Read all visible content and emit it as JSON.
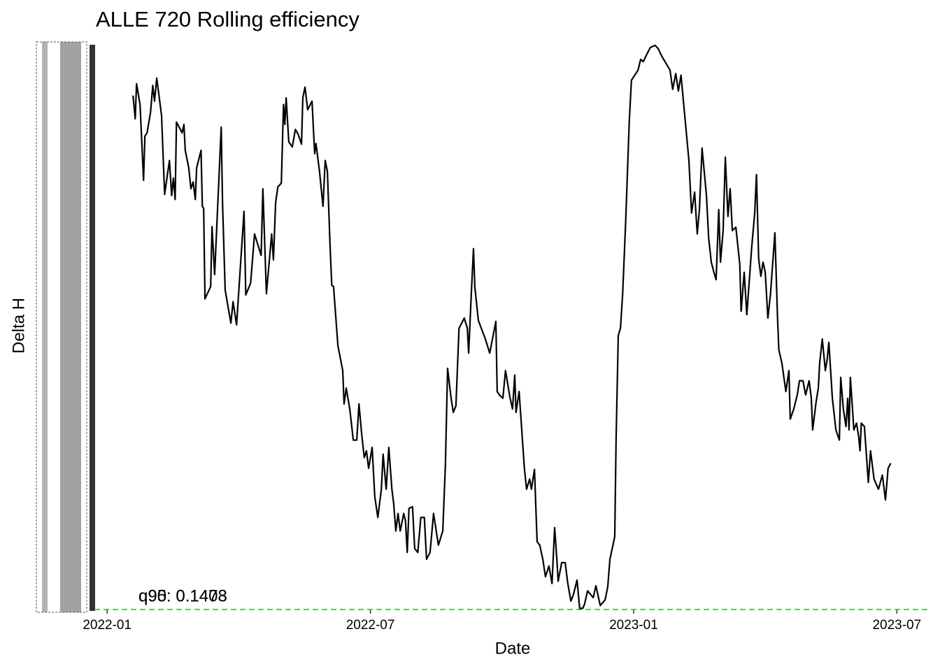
{
  "chart_data": {
    "type": "line",
    "title": "ALLE 720 Rolling efficiency",
    "x_label": "Date",
    "y_label": "Delta H",
    "color": "#000000",
    "xlim": [
      -0.29,
      18.76
    ],
    "xticks": [
      {
        "value": 0,
        "label": "2022-01"
      },
      {
        "value": 6,
        "label": "2022-07"
      },
      {
        "value": 12,
        "label": "2023-01"
      },
      {
        "value": 18,
        "label": "2023-07"
      }
    ],
    "ylim": [
      0,
      1
    ],
    "hline": 0,
    "hline_color": "#22bb22",
    "annotations": [
      {
        "text": "q90: 0.1478",
        "color": "#1a8f3a"
      },
      {
        "text": "q95: 0.1403",
        "color": "#00ee00"
      }
    ],
    "x": [
      0.59,
      0.64,
      0.67,
      0.75,
      0.83,
      0.86,
      0.91,
      0.99,
      1.04,
      1.08,
      1.13,
      1.24,
      1.31,
      1.42,
      1.47,
      1.51,
      1.55,
      1.58,
      1.71,
      1.75,
      1.78,
      1.86,
      1.91,
      1.96,
      2.01,
      2.04,
      2.14,
      2.17,
      2.2,
      2.23,
      2.36,
      2.39,
      2.45,
      2.6,
      2.63,
      2.69,
      2.82,
      2.87,
      2.95,
      3.06,
      3.12,
      3.16,
      3.27,
      3.36,
      3.51,
      3.55,
      3.63,
      3.75,
      3.79,
      3.84,
      3.89,
      3.97,
      4.02,
      4.05,
      4.08,
      4.14,
      4.22,
      4.29,
      4.35,
      4.43,
      4.46,
      4.51,
      4.57,
      4.67,
      4.73,
      4.76,
      4.84,
      4.92,
      4.97,
      5.02,
      5.08,
      5.12,
      5.16,
      5.26,
      5.37,
      5.4,
      5.45,
      5.53,
      5.61,
      5.69,
      5.74,
      5.8,
      5.86,
      5.91,
      5.96,
      6.04,
      6.1,
      6.17,
      6.25,
      6.29,
      6.36,
      6.42,
      6.49,
      6.53,
      6.58,
      6.63,
      6.68,
      6.76,
      6.8,
      6.84,
      6.88,
      6.96,
      7.01,
      7.08,
      7.15,
      7.23,
      7.28,
      7.36,
      7.44,
      7.55,
      7.65,
      7.71,
      7.76,
      7.84,
      7.89,
      7.95,
      8.02,
      8.14,
      8.21,
      8.24,
      8.3,
      8.35,
      8.38,
      8.46,
      8.62,
      8.72,
      8.86,
      8.89,
      8.94,
      9.02,
      9.08,
      9.18,
      9.24,
      9.29,
      9.32,
      9.39,
      9.51,
      9.56,
      9.63,
      9.67,
      9.74,
      9.8,
      9.86,
      9.93,
      9.99,
      10.07,
      10.14,
      10.2,
      10.25,
      10.28,
      10.36,
      10.44,
      10.5,
      10.57,
      10.63,
      10.71,
      10.77,
      10.84,
      10.88,
      10.95,
      11.08,
      11.14,
      11.24,
      11.35,
      11.41,
      11.46,
      11.57,
      11.6,
      11.65,
      11.7,
      11.75,
      11.82,
      11.9,
      11.95,
      12.1,
      12.16,
      12.22,
      12.3,
      12.38,
      12.49,
      12.56,
      12.64,
      12.73,
      12.83,
      12.89,
      12.96,
      13.02,
      13.08,
      13.26,
      13.32,
      13.39,
      13.45,
      13.5,
      13.56,
      13.66,
      13.71,
      13.77,
      13.83,
      13.88,
      13.94,
      13.98,
      14.04,
      14.09,
      14.15,
      14.2,
      14.25,
      14.33,
      14.42,
      14.45,
      14.52,
      14.58,
      14.65,
      14.69,
      14.76,
      14.8,
      14.85,
      14.9,
      14.95,
      15.0,
      15.06,
      15.12,
      15.22,
      15.28,
      15.31,
      15.38,
      15.47,
      15.54,
      15.57,
      15.65,
      15.73,
      15.78,
      15.86,
      15.92,
      16.0,
      16.05,
      16.08,
      16.16,
      16.21,
      16.24,
      16.3,
      16.37,
      16.41,
      16.45,
      16.53,
      16.61,
      16.69,
      16.72,
      16.78,
      16.84,
      16.88,
      16.91,
      16.94,
      17.02,
      17.08,
      17.13,
      17.16,
      17.19,
      17.26,
      17.35,
      17.4,
      17.48,
      17.58,
      17.67,
      17.74,
      17.8,
      17.86
    ],
    "values": [
      0.91,
      0.869,
      0.931,
      0.894,
      0.76,
      0.838,
      0.844,
      0.881,
      0.928,
      0.9,
      0.941,
      0.875,
      0.735,
      0.795,
      0.733,
      0.764,
      0.726,
      0.863,
      0.844,
      0.859,
      0.813,
      0.782,
      0.745,
      0.757,
      0.726,
      0.782,
      0.813,
      0.714,
      0.71,
      0.55,
      0.572,
      0.678,
      0.593,
      0.854,
      0.72,
      0.566,
      0.507,
      0.545,
      0.504,
      0.634,
      0.705,
      0.557,
      0.578,
      0.665,
      0.627,
      0.745,
      0.559,
      0.665,
      0.619,
      0.72,
      0.748,
      0.755,
      0.894,
      0.859,
      0.906,
      0.828,
      0.819,
      0.85,
      0.842,
      0.824,
      0.906,
      0.925,
      0.885,
      0.9,
      0.807,
      0.825,
      0.776,
      0.714,
      0.795,
      0.776,
      0.646,
      0.574,
      0.572,
      0.467,
      0.423,
      0.364,
      0.392,
      0.355,
      0.3,
      0.3,
      0.364,
      0.312,
      0.269,
      0.281,
      0.25,
      0.287,
      0.2,
      0.163,
      0.213,
      0.275,
      0.213,
      0.287,
      0.213,
      0.188,
      0.139,
      0.17,
      0.139,
      0.17,
      0.157,
      0.101,
      0.179,
      0.182,
      0.108,
      0.101,
      0.163,
      0.163,
      0.089,
      0.101,
      0.17,
      0.114,
      0.139,
      0.256,
      0.427,
      0.374,
      0.349,
      0.361,
      0.498,
      0.516,
      0.498,
      0.454,
      0.559,
      0.639,
      0.572,
      0.512,
      0.479,
      0.454,
      0.51,
      0.386,
      0.38,
      0.374,
      0.423,
      0.376,
      0.355,
      0.415,
      0.349,
      0.386,
      0.25,
      0.213,
      0.231,
      0.213,
      0.248,
      0.12,
      0.114,
      0.089,
      0.058,
      0.077,
      0.046,
      0.145,
      0.089,
      0.05,
      0.083,
      0.083,
      0.046,
      0.015,
      0.027,
      0.052,
      0.002,
      0.002,
      0.009,
      0.033,
      0.021,
      0.042,
      0.007,
      0.017,
      0.04,
      0.089,
      0.129,
      0.3,
      0.485,
      0.498,
      0.559,
      0.689,
      0.863,
      0.937,
      0.955,
      0.974,
      0.97,
      0.983,
      0.995,
      0.999,
      0.993,
      0.98,
      0.968,
      0.955,
      0.921,
      0.949,
      0.918,
      0.946,
      0.795,
      0.702,
      0.739,
      0.665,
      0.708,
      0.817,
      0.733,
      0.658,
      0.615,
      0.597,
      0.584,
      0.708,
      0.615,
      0.671,
      0.801,
      0.696,
      0.745,
      0.671,
      0.677,
      0.611,
      0.528,
      0.597,
      0.522,
      0.597,
      0.64,
      0.702,
      0.77,
      0.621,
      0.59,
      0.615,
      0.597,
      0.516,
      0.559,
      0.667,
      0.516,
      0.46,
      0.436,
      0.386,
      0.423,
      0.337,
      0.355,
      0.38,
      0.405,
      0.405,
      0.38,
      0.405,
      0.374,
      0.318,
      0.368,
      0.392,
      0.436,
      0.479,
      0.423,
      0.442,
      0.473,
      0.374,
      0.318,
      0.3,
      0.411,
      0.355,
      0.324,
      0.374,
      0.318,
      0.411,
      0.318,
      0.33,
      0.306,
      0.281,
      0.33,
      0.324,
      0.225,
      0.281,
      0.231,
      0.213,
      0.238,
      0.194,
      0.25,
      0.259
    ]
  }
}
